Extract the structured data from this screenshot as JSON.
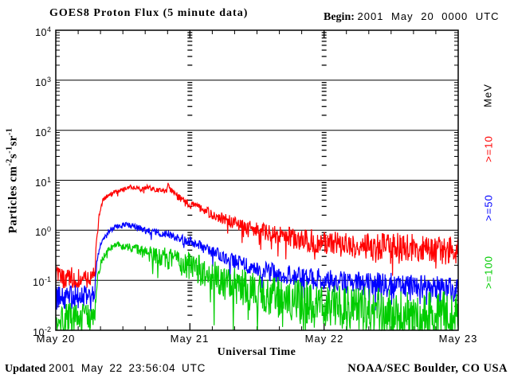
{
  "header": {
    "title": "GOES8 Proton Flux (5 minute data)",
    "begin_label": "Begin:",
    "begin_value": "2001 May 20 0000 UTC"
  },
  "footer": {
    "updated_label": "Updated",
    "updated_value": "2001 May 22 23:56:04 UTC",
    "credit": "NOAA/SEC Boulder, CO USA"
  },
  "chart_data": {
    "type": "line",
    "title": "GOES8 Proton Flux (5 minute data)",
    "xlabel": "Universal Time",
    "ylabel": "Particles cm-2 s-1 sr-1",
    "ylabel_parts": [
      {
        "text": "Particles cm",
        "sup": "-2"
      },
      {
        "text": "s",
        "sup": "-1"
      },
      {
        "text": "sr",
        "sup": "-1"
      }
    ],
    "x_ticks": [
      "May 20",
      "May 21",
      "May 22",
      "May 23"
    ],
    "x_range_hours": [
      0,
      72
    ],
    "x_minor_tick_hours": 4,
    "y_scale": "log",
    "y_range": [
      0.01,
      10000
    ],
    "y_ticks": [
      {
        "base": "10",
        "exp": "4"
      },
      {
        "base": "10",
        "exp": "3"
      },
      {
        "base": "10",
        "exp": "2"
      },
      {
        "base": "10",
        "exp": "1"
      },
      {
        "base": "10",
        "exp": "0"
      },
      {
        "base": "10",
        "exp": "-1"
      },
      {
        "base": "10",
        "exp": "-2"
      }
    ],
    "grid": {
      "horizontal_decade_lines": true,
      "vertical_dashed_day_lines_hours": [
        24,
        48
      ]
    },
    "unit_label": "MeV",
    "legend_position": "right-rotated",
    "samples_per_hour": 12,
    "dip_probability": 0.06,
    "dip_scale": 2.2,
    "series": [
      {
        "name": ">=10",
        "threshold_mev": 10,
        "color": "#ff0000",
        "trend_hours_flux": [
          [
            0,
            0.11
          ],
          [
            6.9,
            0.11
          ],
          [
            7.2,
            0.45
          ],
          [
            7.8,
            2.2
          ],
          [
            8.5,
            4.2
          ],
          [
            10,
            5.5
          ],
          [
            12,
            6.5
          ],
          [
            14,
            7.6
          ],
          [
            15.3,
            6.6
          ],
          [
            16.5,
            7.3
          ],
          [
            18,
            6.3
          ],
          [
            19.8,
            5.9
          ],
          [
            20.2,
            9.0
          ],
          [
            20.5,
            6.3
          ],
          [
            22,
            4.6
          ],
          [
            24,
            3.3
          ],
          [
            26,
            2.7
          ],
          [
            28,
            2.1
          ],
          [
            30,
            1.7
          ],
          [
            33,
            1.3
          ],
          [
            36,
            1.02
          ],
          [
            40,
            0.78
          ],
          [
            44,
            0.65
          ],
          [
            48,
            0.56
          ],
          [
            54,
            0.5
          ],
          [
            60,
            0.47
          ],
          [
            66,
            0.43
          ],
          [
            72,
            0.37
          ]
        ],
        "noise_dex": [
          [
            0,
            0.24
          ],
          [
            6.9,
            0.24
          ],
          [
            7.3,
            0.05
          ],
          [
            16,
            0.05
          ],
          [
            22,
            0.07
          ],
          [
            28,
            0.1
          ],
          [
            34,
            0.14
          ],
          [
            40,
            0.19
          ],
          [
            46,
            0.24
          ],
          [
            52,
            0.27
          ],
          [
            72,
            0.3
          ]
        ]
      },
      {
        "name": ">=50",
        "threshold_mev": 50,
        "color": "#0000ff",
        "trend_hours_flux": [
          [
            0,
            0.045
          ],
          [
            6.9,
            0.045
          ],
          [
            7.3,
            0.22
          ],
          [
            8,
            0.55
          ],
          [
            9,
            0.85
          ],
          [
            10.5,
            1.15
          ],
          [
            12.5,
            1.32
          ],
          [
            14.5,
            1.15
          ],
          [
            16.5,
            1.0
          ],
          [
            19,
            0.88
          ],
          [
            21,
            0.78
          ],
          [
            24,
            0.6
          ],
          [
            26.5,
            0.45
          ],
          [
            29,
            0.33
          ],
          [
            32,
            0.24
          ],
          [
            35,
            0.18
          ],
          [
            38,
            0.15
          ],
          [
            42,
            0.125
          ],
          [
            46,
            0.107
          ],
          [
            50,
            0.096
          ],
          [
            56,
            0.086
          ],
          [
            62,
            0.078
          ],
          [
            68,
            0.07
          ],
          [
            72,
            0.065
          ]
        ],
        "noise_dex": [
          [
            0,
            0.25
          ],
          [
            6.9,
            0.25
          ],
          [
            7.3,
            0.05
          ],
          [
            13,
            0.05
          ],
          [
            18,
            0.07
          ],
          [
            24,
            0.1
          ],
          [
            30,
            0.13
          ],
          [
            36,
            0.17
          ],
          [
            44,
            0.21
          ],
          [
            52,
            0.24
          ],
          [
            72,
            0.26
          ]
        ]
      },
      {
        "name": ">=100",
        "threshold_mev": 100,
        "color": "#00cc00",
        "trend_hours_flux": [
          [
            0,
            0.018
          ],
          [
            6.9,
            0.018
          ],
          [
            7.4,
            0.1
          ],
          [
            8.2,
            0.25
          ],
          [
            9.5,
            0.42
          ],
          [
            11,
            0.52
          ],
          [
            12.5,
            0.47
          ],
          [
            14.5,
            0.4
          ],
          [
            17,
            0.33
          ],
          [
            20,
            0.27
          ],
          [
            22,
            0.23
          ],
          [
            24,
            0.195
          ],
          [
            26.5,
            0.145
          ],
          [
            29,
            0.105
          ],
          [
            32,
            0.078
          ],
          [
            35,
            0.06
          ],
          [
            38,
            0.05
          ],
          [
            42,
            0.04
          ],
          [
            46,
            0.034
          ],
          [
            50,
            0.03
          ],
          [
            56,
            0.026
          ],
          [
            62,
            0.023
          ],
          [
            68,
            0.021
          ],
          [
            72,
            0.02
          ]
        ],
        "noise_dex": [
          [
            0,
            0.28
          ],
          [
            6.9,
            0.28
          ],
          [
            7.4,
            0.07
          ],
          [
            12,
            0.07
          ],
          [
            16,
            0.14
          ],
          [
            20,
            0.22
          ],
          [
            24,
            0.28
          ],
          [
            30,
            0.36
          ],
          [
            36,
            0.42
          ],
          [
            44,
            0.45
          ],
          [
            72,
            0.47
          ]
        ]
      }
    ]
  }
}
